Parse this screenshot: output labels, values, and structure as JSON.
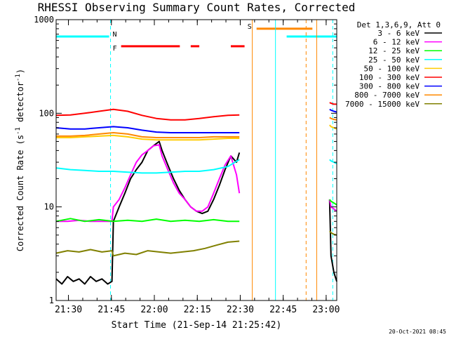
{
  "chart_data": {
    "type": "line",
    "title": "RHESSI Observing Summary Count Rates, Corrected",
    "xlabel": "Start Time (21-Sep-14 21:25:42)",
    "ylabel": "Corrected Count Rate (s",
    "ylabel_sup1": "-1",
    "ylabel_mid": " detector",
    "ylabel_sup2": "-1",
    "ylabel_end": ")",
    "yscale": "log",
    "ylim": [
      1,
      1000
    ],
    "yticks": [
      "1",
      "10",
      "100",
      "1000"
    ],
    "xlim_minutes": [
      0,
      98
    ],
    "xticks": [
      {
        "label": "21:30",
        "t": 4.3
      },
      {
        "label": "21:45",
        "t": 19.3
      },
      {
        "label": "22:00",
        "t": 34.3
      },
      {
        "label": "22:15",
        "t": 49.3
      },
      {
        "label": "22:30",
        "t": 64.3
      },
      {
        "label": "22:45",
        "t": 79.3
      },
      {
        "label": "23:00",
        "t": 94.3
      }
    ],
    "legend_title": "Det 1,3,6,9, Att 0",
    "legend_placement": "outside-right",
    "series": [
      {
        "name": "3 - 6 keV",
        "color": "#000000",
        "segments": [
          [
            [
              0,
              1.7
            ],
            [
              2,
              1.5
            ],
            [
              4,
              1.8
            ],
            [
              6,
              1.6
            ],
            [
              8,
              1.7
            ],
            [
              10,
              1.5
            ],
            [
              12,
              1.8
            ],
            [
              14,
              1.6
            ],
            [
              16,
              1.7
            ],
            [
              18,
              1.5
            ],
            [
              19.5,
              1.6
            ],
            [
              20,
              7
            ],
            [
              22,
              10
            ],
            [
              24,
              14
            ],
            [
              26,
              20
            ],
            [
              28,
              25
            ],
            [
              30,
              30
            ],
            [
              32,
              40
            ],
            [
              34,
              45
            ],
            [
              36,
              50
            ],
            [
              37,
              40
            ],
            [
              39,
              28
            ],
            [
              41,
              20
            ],
            [
              43,
              15
            ],
            [
              45,
              12
            ],
            [
              47,
              10
            ],
            [
              49,
              9
            ],
            [
              51,
              8.5
            ],
            [
              53,
              9
            ],
            [
              55,
              12
            ],
            [
              57,
              17
            ],
            [
              59,
              25
            ],
            [
              61,
              35
            ],
            [
              63,
              30
            ],
            [
              64,
              38
            ]
          ],
          [
            [
              95.5,
              12
            ],
            [
              96,
              3
            ],
            [
              97,
              2
            ],
            [
              98,
              1.6
            ]
          ]
        ]
      },
      {
        "name": "6 - 12 keV",
        "color": "#ff00ff",
        "segments": [
          [
            [
              0,
              7
            ],
            [
              4,
              7
            ],
            [
              8,
              7.2
            ],
            [
              12,
              7
            ],
            [
              16,
              7
            ],
            [
              19.5,
              7
            ],
            [
              20,
              10
            ],
            [
              22,
              12
            ],
            [
              24,
              16
            ],
            [
              26,
              22
            ],
            [
              28,
              30
            ],
            [
              30,
              36
            ],
            [
              32,
              40
            ],
            [
              34,
              45
            ],
            [
              36,
              46
            ],
            [
              37,
              35
            ],
            [
              39,
              25
            ],
            [
              41,
              18
            ],
            [
              43,
              14
            ],
            [
              45,
              12
            ],
            [
              47,
              10
            ],
            [
              49,
              9
            ],
            [
              51,
              9
            ],
            [
              53,
              10
            ],
            [
              55,
              14
            ],
            [
              57,
              20
            ],
            [
              59,
              28
            ],
            [
              61,
              35
            ],
            [
              63,
              22
            ],
            [
              64,
              14
            ]
          ],
          [
            [
              95.5,
              12
            ],
            [
              96,
              10
            ],
            [
              97,
              9.5
            ],
            [
              98,
              9
            ]
          ]
        ]
      },
      {
        "name": "12 - 25 keV",
        "color": "#00ff00",
        "segments": [
          [
            [
              0,
              7
            ],
            [
              5,
              7.5
            ],
            [
              10,
              7
            ],
            [
              15,
              7.3
            ],
            [
              20,
              7
            ],
            [
              25,
              7.2
            ],
            [
              30,
              7
            ],
            [
              35,
              7.4
            ],
            [
              40,
              7
            ],
            [
              45,
              7.2
            ],
            [
              50,
              7
            ],
            [
              55,
              7.3
            ],
            [
              60,
              7
            ],
            [
              64,
              7
            ]
          ],
          [
            [
              95.5,
              12
            ],
            [
              96,
              11.5
            ],
            [
              97,
              11
            ],
            [
              98,
              10.5
            ]
          ]
        ]
      },
      {
        "name": "25 - 50 keV",
        "color": "#00ffff",
        "segments": [
          [
            [
              0,
              26
            ],
            [
              5,
              25
            ],
            [
              10,
              24.5
            ],
            [
              15,
              24
            ],
            [
              20,
              24
            ],
            [
              25,
              23.5
            ],
            [
              30,
              23
            ],
            [
              35,
              23
            ],
            [
              40,
              23.5
            ],
            [
              45,
              24
            ],
            [
              50,
              24
            ],
            [
              55,
              25
            ],
            [
              60,
              27
            ],
            [
              64,
              32
            ]
          ],
          [
            [
              95.5,
              32
            ],
            [
              96,
              31
            ],
            [
              97,
              30
            ],
            [
              98,
              29
            ]
          ]
        ]
      },
      {
        "name": "50 - 100 keV",
        "color": "#ffcc00",
        "segments": [
          [
            [
              0,
              55
            ],
            [
              5,
              55
            ],
            [
              10,
              56
            ],
            [
              15,
              57
            ],
            [
              20,
              58
            ],
            [
              25,
              56
            ],
            [
              30,
              53
            ],
            [
              35,
              52
            ],
            [
              40,
              52
            ],
            [
              45,
              52
            ],
            [
              50,
              52
            ],
            [
              55,
              53
            ],
            [
              60,
              54
            ],
            [
              64,
              54
            ]
          ],
          [
            [
              95.5,
              75
            ],
            [
              96,
              72
            ],
            [
              97,
              70
            ],
            [
              98,
              68
            ]
          ]
        ]
      },
      {
        "name": "100 - 300 keV",
        "color": "#ff0000",
        "segments": [
          [
            [
              0,
              95
            ],
            [
              5,
              96
            ],
            [
              10,
              100
            ],
            [
              15,
              105
            ],
            [
              20,
              110
            ],
            [
              25,
              105
            ],
            [
              30,
              95
            ],
            [
              35,
              88
            ],
            [
              40,
              85
            ],
            [
              45,
              85
            ],
            [
              50,
              88
            ],
            [
              55,
              92
            ],
            [
              60,
              95
            ],
            [
              64,
              96
            ]
          ],
          [
            [
              95.5,
              130
            ],
            [
              96,
              128
            ],
            [
              97,
              125
            ],
            [
              98,
              125
            ]
          ]
        ]
      },
      {
        "name": "300 - 800 keV",
        "color": "#0000ff",
        "segments": [
          [
            [
              0,
              70
            ],
            [
              5,
              68
            ],
            [
              10,
              68
            ],
            [
              15,
              70
            ],
            [
              20,
              72
            ],
            [
              25,
              70
            ],
            [
              30,
              66
            ],
            [
              35,
              63
            ],
            [
              40,
              62
            ],
            [
              45,
              62
            ],
            [
              50,
              62
            ],
            [
              55,
              62
            ],
            [
              60,
              62
            ],
            [
              64,
              62
            ]
          ],
          [
            [
              95.5,
              110
            ],
            [
              96,
              108
            ],
            [
              97,
              105
            ],
            [
              98,
              103
            ]
          ]
        ]
      },
      {
        "name": "800 - 7000 keV",
        "color": "#ff8800",
        "segments": [
          [
            [
              0,
              57
            ],
            [
              5,
              57
            ],
            [
              10,
              58
            ],
            [
              15,
              60
            ],
            [
              20,
              62
            ],
            [
              25,
              60
            ],
            [
              30,
              56
            ],
            [
              35,
              55
            ],
            [
              40,
              55
            ],
            [
              45,
              55
            ],
            [
              50,
              55
            ],
            [
              55,
              56
            ],
            [
              60,
              56
            ],
            [
              64,
              56
            ]
          ],
          [
            [
              95.5,
              90
            ],
            [
              96,
              88
            ],
            [
              97,
              86
            ],
            [
              98,
              85
            ]
          ]
        ]
      },
      {
        "name": "7000 - 15000 keV",
        "color": "#808000",
        "segments": [
          [
            [
              0,
              3.2
            ],
            [
              4,
              3.4
            ],
            [
              8,
              3.3
            ],
            [
              12,
              3.5
            ],
            [
              16,
              3.3
            ],
            [
              19.5,
              3.4
            ],
            [
              20,
              3.0
            ],
            [
              24,
              3.2
            ],
            [
              28,
              3.1
            ],
            [
              32,
              3.4
            ],
            [
              36,
              3.3
            ],
            [
              40,
              3.2
            ],
            [
              44,
              3.3
            ],
            [
              48,
              3.4
            ],
            [
              52,
              3.6
            ],
            [
              56,
              3.9
            ],
            [
              60,
              4.2
            ],
            [
              64,
              4.3
            ]
          ],
          [
            [
              95.5,
              5.5
            ],
            [
              96,
              5.3
            ],
            [
              97,
              5.1
            ],
            [
              98,
              5.0
            ]
          ]
        ]
      }
    ],
    "flag_bars": [
      {
        "label": "N",
        "color": "#00ffff",
        "y": 660,
        "segments": [
          [
            0,
            18.5
          ],
          [
            80.5,
            98
          ]
        ]
      },
      {
        "label": "F",
        "color": "#ff0000",
        "y": 520,
        "segments": [
          [
            22.7,
            43.2
          ],
          [
            47,
            50
          ],
          [
            61,
            65.8
          ]
        ]
      },
      {
        "label": "S",
        "color": "#ff8800",
        "y": 800,
        "segments": [
          [
            70,
            89.5
          ]
        ]
      }
    ],
    "vlines": [
      {
        "t": 19,
        "color": "#00ffff",
        "style": "dashed"
      },
      {
        "t": 68.5,
        "color": "#ff8800",
        "style": "solid"
      },
      {
        "t": 76.6,
        "color": "#00ffff",
        "style": "solid"
      },
      {
        "t": 87.3,
        "color": "#ff8800",
        "style": "dashed"
      },
      {
        "t": 91.0,
        "color": "#ff8800",
        "style": "solid"
      },
      {
        "t": 96.6,
        "color": "#00ffff",
        "style": "dashed"
      }
    ]
  },
  "footer": {
    "timestamp": "20-Oct-2021 08:45"
  }
}
